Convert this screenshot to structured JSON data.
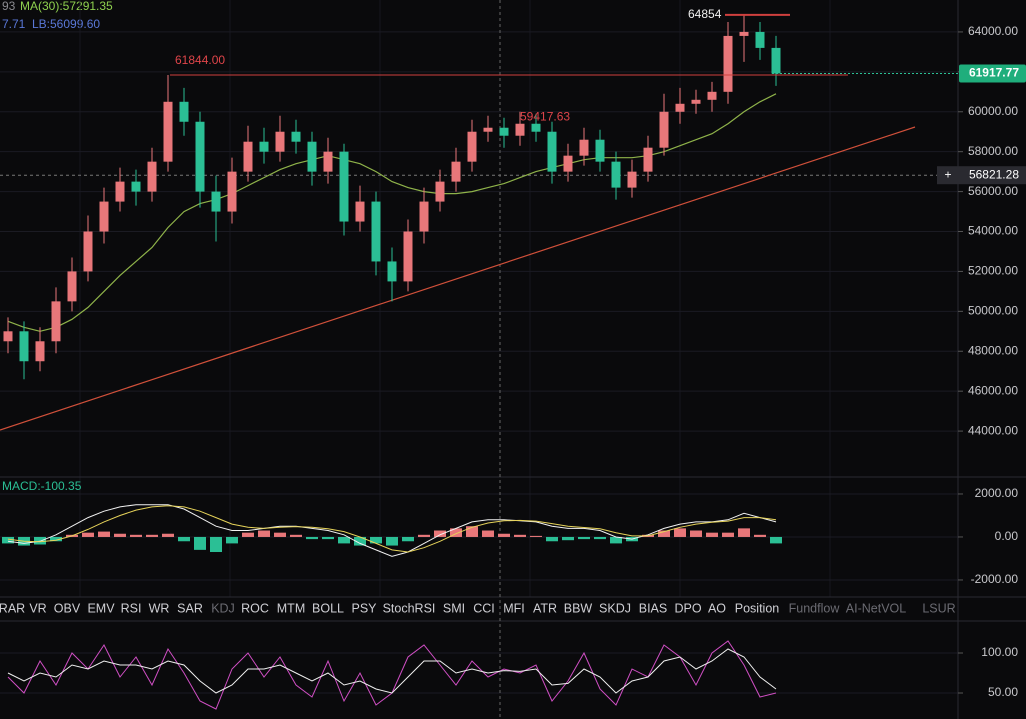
{
  "legend": {
    "ma_prefix": "93",
    "ma": "MA(30):57291.35",
    "lb_prefix": "7.71",
    "lb": "LB:56099.60"
  },
  "tabs": [
    {
      "label": "RAR",
      "dimmed": false
    },
    {
      "label": "VR",
      "dimmed": false
    },
    {
      "label": "OBV",
      "dimmed": false
    },
    {
      "label": "EMV",
      "dimmed": false
    },
    {
      "label": "RSI",
      "dimmed": false
    },
    {
      "label": "WR",
      "dimmed": false
    },
    {
      "label": "SAR",
      "dimmed": false
    },
    {
      "label": "KDJ",
      "dimmed": true
    },
    {
      "label": "ROC",
      "dimmed": false
    },
    {
      "label": "MTM",
      "dimmed": false
    },
    {
      "label": "BOLL",
      "dimmed": false
    },
    {
      "label": "PSY",
      "dimmed": false
    },
    {
      "label": "StochRSI",
      "dimmed": false
    },
    {
      "label": "SMI",
      "dimmed": false
    },
    {
      "label": "CCI",
      "dimmed": false
    },
    {
      "label": "MFI",
      "dimmed": false
    },
    {
      "label": "ATR",
      "dimmed": false
    },
    {
      "label": "BBW",
      "dimmed": false
    },
    {
      "label": "SKDJ",
      "dimmed": false
    },
    {
      "label": "BIAS",
      "dimmed": false
    },
    {
      "label": "DPO",
      "dimmed": false
    },
    {
      "label": "AO",
      "dimmed": false
    },
    {
      "label": "Position",
      "dimmed": false
    },
    {
      "label": "Fundflow",
      "dimmed": true
    },
    {
      "label": "AI-NetVOL",
      "dimmed": true
    },
    {
      "label": "LSUR",
      "dimmed": true
    }
  ],
  "chart_data": [
    {
      "type": "candlestick",
      "up_color": "#e8777a",
      "down_color": "#2bbf95",
      "ma_color": "#8fb34a",
      "ylim": [
        41800,
        65600
      ],
      "yticks": [
        {
          "value": 44000,
          "label": "44000.00"
        },
        {
          "value": 46000,
          "label": "46000.00"
        },
        {
          "value": 48000,
          "label": "48000.00"
        },
        {
          "value": 50000,
          "label": "50000.00"
        },
        {
          "value": 52000,
          "label": "52000.00"
        },
        {
          "value": 54000,
          "label": "54000.00"
        },
        {
          "value": 56000,
          "label": "56000.00"
        },
        {
          "value": 58000,
          "label": "58000.00"
        },
        {
          "value": 60000,
          "label": "60000.00"
        },
        {
          "value": 62000,
          "label": "62000.00"
        },
        {
          "value": 64000,
          "label": "64000.00"
        }
      ],
      "open": [
        48500,
        49000,
        47500,
        48500,
        50500,
        52000,
        54000,
        55500,
        56500,
        56000,
        57500,
        60500,
        59500,
        56000,
        55000,
        57000,
        58500,
        58000,
        59000,
        58500,
        57000,
        58000,
        54500,
        55500,
        52500,
        51500,
        54000,
        55500,
        56500,
        57500,
        59000,
        59200,
        58800,
        59400,
        59000,
        57000,
        57800,
        58600,
        57500,
        56200,
        57000,
        58200,
        60000,
        60400,
        60600,
        61000,
        63800,
        64000,
        63200
      ],
      "high": [
        49700,
        49500,
        49200,
        51200,
        52700,
        54800,
        56200,
        57200,
        57100,
        58200,
        61844,
        61200,
        60000,
        56800,
        57700,
        59300,
        59200,
        59800,
        59600,
        59000,
        58700,
        58400,
        56300,
        56000,
        53200,
        54600,
        56200,
        57100,
        58200,
        59600,
        59800,
        59700,
        60000,
        59900,
        59500,
        58400,
        59200,
        59100,
        58000,
        57600,
        58800,
        60900,
        61200,
        61100,
        61500,
        64500,
        64854,
        64500,
        63800
      ],
      "low": [
        47900,
        46600,
        47000,
        47900,
        50000,
        51500,
        53400,
        55000,
        55300,
        55500,
        57000,
        58800,
        55200,
        53500,
        54400,
        56500,
        57400,
        57500,
        57900,
        56300,
        56400,
        53800,
        54000,
        51800,
        50500,
        51000,
        53400,
        55000,
        56000,
        57000,
        58500,
        58200,
        58300,
        58500,
        56400,
        56500,
        57300,
        57000,
        55600,
        55700,
        56500,
        57800,
        59400,
        59900,
        60000,
        60400,
        62500,
        62600,
        61300
      ],
      "close": [
        49000,
        47500,
        48500,
        50500,
        52000,
        54000,
        55500,
        56500,
        56000,
        57500,
        60500,
        59500,
        56000,
        55000,
        57000,
        58500,
        58000,
        59000,
        58500,
        57000,
        58000,
        54500,
        55500,
        52500,
        51500,
        54000,
        55500,
        56500,
        57500,
        59000,
        59200,
        58800,
        59400,
        59000,
        57000,
        57800,
        58600,
        57500,
        56200,
        57000,
        58200,
        60000,
        60400,
        60600,
        61000,
        63800,
        64000,
        63200,
        61917.77
      ],
      "ma": [
        49500,
        49200,
        49000,
        49200,
        49600,
        50200,
        51000,
        51800,
        52500,
        53200,
        54200,
        55000,
        55400,
        55600,
        55900,
        56300,
        56700,
        57100,
        57400,
        57600,
        57800,
        57600,
        57400,
        57000,
        56500,
        56200,
        56000,
        55900,
        55900,
        56000,
        56200,
        56400,
        56700,
        57000,
        57200,
        57400,
        57600,
        57700,
        57700,
        57700,
        57800,
        58000,
        58300,
        58600,
        58900,
        59400,
        60000,
        60500,
        60900
      ],
      "last_price": {
        "value": 61917.77,
        "label": "61917.77"
      },
      "crosshair_price": {
        "value": 56821.28,
        "label": "56821.28"
      },
      "annotations": [
        {
          "value": 61844,
          "label": "61844.00"
        },
        {
          "value": 59417.63,
          "label": "59417.63"
        },
        {
          "value": 64854,
          "label": "64854"
        }
      ]
    },
    {
      "type": "macd",
      "title": "MACD:-100.35",
      "ylim": [
        -2700,
        2650
      ],
      "yticks": [
        {
          "value": 2000,
          "label": "2000.00"
        },
        {
          "value": 0,
          "label": "0.00"
        },
        {
          "value": -2000,
          "label": "-2000.00"
        }
      ],
      "histogram": [
        -300,
        -400,
        -350,
        -200,
        100,
        200,
        250,
        150,
        100,
        100,
        150,
        -200,
        -600,
        -700,
        -300,
        200,
        300,
        200,
        100,
        -100,
        -100,
        -300,
        -400,
        -300,
        -400,
        -200,
        100,
        300,
        400,
        500,
        300,
        150,
        100,
        50,
        -200,
        -150,
        -100,
        -100,
        -300,
        -200,
        100,
        300,
        400,
        300,
        200,
        200,
        400,
        100,
        -300
      ],
      "lines": [
        {
          "color": "#f2f2f2",
          "values": [
            -200,
            -300,
            -200,
            100,
            500,
            900,
            1200,
            1400,
            1500,
            1500,
            1500,
            1300,
            900,
            500,
            300,
            300,
            400,
            500,
            500,
            400,
            300,
            100,
            -300,
            -600,
            -900,
            -700,
            -300,
            100,
            400,
            700,
            800,
            800,
            750,
            700,
            500,
            400,
            400,
            300,
            0,
            -100,
            100,
            400,
            600,
            700,
            700,
            800,
            1100,
            900,
            700
          ]
        },
        {
          "color": "#e6d35a",
          "values": [
            -100,
            -200,
            -220,
            -150,
            50,
            350,
            700,
            1000,
            1250,
            1400,
            1450,
            1400,
            1200,
            900,
            600,
            450,
            400,
            450,
            480,
            450,
            380,
            250,
            0,
            -300,
            -600,
            -700,
            -500,
            -200,
            150,
            450,
            650,
            750,
            770,
            740,
            620,
            500,
            440,
            380,
            200,
            50,
            50,
            250,
            450,
            600,
            680,
            740,
            900,
            900,
            800
          ]
        }
      ]
    },
    {
      "type": "line",
      "ylim": [
        17.5,
        138.75
      ],
      "yticks": [
        {
          "value": 100,
          "label": "100.00"
        },
        {
          "value": 50,
          "label": "50.00"
        }
      ],
      "series": [
        {
          "color": "#d04fc4",
          "values": [
            70,
            50,
            90,
            60,
            100,
            80,
            110,
            70,
            95,
            60,
            105,
            75,
            40,
            30,
            80,
            100,
            70,
            95,
            60,
            45,
            90,
            40,
            75,
            35,
            50,
            95,
            110,
            85,
            60,
            90,
            70,
            80,
            75,
            85,
            40,
            65,
            100,
            55,
            35,
            80,
            70,
            110,
            95,
            60,
            100,
            115,
            85,
            45,
            50
          ]
        },
        {
          "color": "#f0f0f0",
          "values": [
            75,
            65,
            75,
            70,
            85,
            80,
            90,
            85,
            85,
            80,
            90,
            85,
            65,
            50,
            60,
            80,
            80,
            85,
            75,
            65,
            75,
            60,
            65,
            55,
            50,
            70,
            90,
            90,
            75,
            80,
            75,
            78,
            77,
            80,
            60,
            62,
            80,
            70,
            50,
            65,
            70,
            90,
            95,
            80,
            90,
            105,
            95,
            70,
            55
          ]
        }
      ]
    }
  ]
}
